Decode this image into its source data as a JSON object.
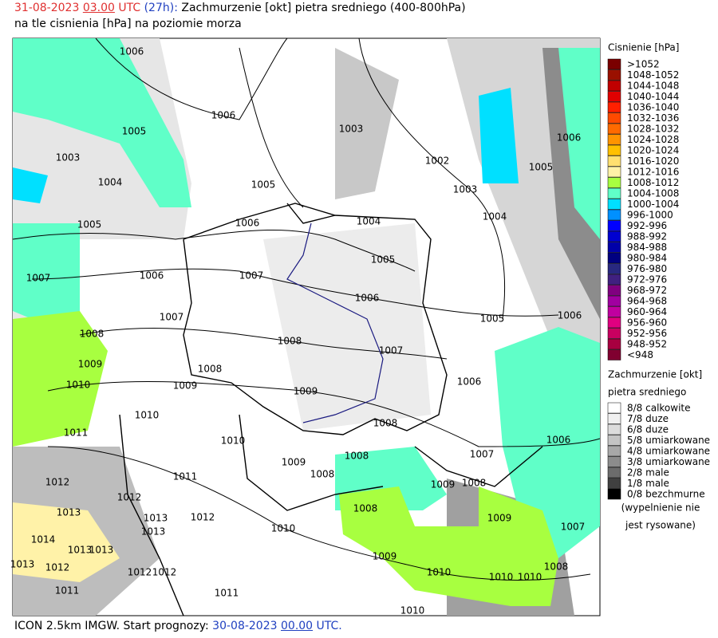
{
  "header": {
    "title_parts": [
      {
        "text": "31-08-2023",
        "color": "#e03030",
        "underline": false
      },
      {
        "text": "03.00",
        "color": "#e03030",
        "underline": true
      },
      {
        "text": "UTC",
        "color": "#e03030",
        "underline": false
      },
      {
        "text": "(27h):",
        "color": "#2040c0",
        "underline": false
      },
      {
        "text": "Zachmurzenie [okt] pietra sredniego (400-800hPa)",
        "color": "#000000",
        "underline": false
      }
    ],
    "subtitle": "na tle cisnienia [hPa] na poziomie morza"
  },
  "footer": {
    "parts": [
      {
        "text": "ICON 2.5km IMGW. Start prognozy:",
        "color": "#000000",
        "underline": false
      },
      {
        "text": "30-08-2023",
        "color": "#2040c0",
        "underline": false
      },
      {
        "text": "00.00",
        "color": "#2040c0",
        "underline": true
      },
      {
        "text": "UTC.",
        "color": "#2040c0",
        "underline": false
      }
    ]
  },
  "pressure_legend": {
    "title": "Cisnienie [hPa]",
    "items": [
      {
        "label": ">1052",
        "color": "#7a0000"
      },
      {
        "label": "1048-1052",
        "color": "#9a1000"
      },
      {
        "label": "1044-1048",
        "color": "#c00000"
      },
      {
        "label": "1040-1044",
        "color": "#e00000"
      },
      {
        "label": "1036-1040",
        "color": "#ff2000"
      },
      {
        "label": "1032-1036",
        "color": "#ff4a00"
      },
      {
        "label": "1028-1032",
        "color": "#ff6a00"
      },
      {
        "label": "1024-1028",
        "color": "#ff9400"
      },
      {
        "label": "1020-1024",
        "color": "#ffc000"
      },
      {
        "label": "1016-1020",
        "color": "#ffe070"
      },
      {
        "label": "1012-1016",
        "color": "#fff2a8"
      },
      {
        "label": "1008-1012",
        "color": "#a8ff40"
      },
      {
        "label": "1004-1008",
        "color": "#60ffc8"
      },
      {
        "label": "1000-1004",
        "color": "#00e0ff"
      },
      {
        "label": "996-1000",
        "color": "#0090ff"
      },
      {
        "label": "992-996",
        "color": "#0000ff"
      },
      {
        "label": "988-992",
        "color": "#0000d0"
      },
      {
        "label": "984-988",
        "color": "#0000a8"
      },
      {
        "label": "980-984",
        "color": "#000080"
      },
      {
        "label": "976-980",
        "color": "#282880"
      },
      {
        "label": "972-976",
        "color": "#402080"
      },
      {
        "label": "968-972",
        "color": "#800080"
      },
      {
        "label": "964-968",
        "color": "#a000a0"
      },
      {
        "label": "960-964",
        "color": "#c000a0"
      },
      {
        "label": "956-960",
        "color": "#e00080"
      },
      {
        "label": "952-956",
        "color": "#c80060"
      },
      {
        "label": "948-952",
        "color": "#a80040"
      },
      {
        "label": "<948",
        "color": "#800030"
      }
    ]
  },
  "cloud_legend": {
    "title_lines": [
      "Zachmurzenie [okt]",
      "pietra sredniego"
    ],
    "items": [
      {
        "label": "8/8 calkowite",
        "color": "#ffffff"
      },
      {
        "label": "7/8 duze",
        "color": "#f0f0f0"
      },
      {
        "label": "6/8 duze",
        "color": "#dcdcdc"
      },
      {
        "label": "5/8 umiarkowane",
        "color": "#c4c4c4"
      },
      {
        "label": "4/8 umiarkowane",
        "color": "#a8a8a8"
      },
      {
        "label": "3/8 umiarkowane",
        "color": "#8c8c8c"
      },
      {
        "label": "2/8 male",
        "color": "#6c6c6c"
      },
      {
        "label": "1/8 male",
        "color": "#404040"
      },
      {
        "label": "0/8 bezchmurne",
        "color": "#000000"
      }
    ],
    "note_lines": [
      "(wypelnienie nie",
      "jest rysowane)"
    ]
  },
  "isobar_labels": [
    "1006",
    "1006",
    "1005",
    "1003",
    "1004",
    "1005",
    "1003",
    "1002",
    "1003",
    "1005",
    "1006",
    "1004",
    "1004",
    "1006",
    "1005",
    "1006",
    "1007",
    "1007",
    "1005",
    "1006",
    "1005",
    "1006",
    "1007",
    "1008",
    "1008",
    "1007",
    "1009",
    "1008",
    "1009",
    "1010",
    "1009",
    "1006",
    "1010",
    "1008",
    "1011",
    "1010",
    "1006",
    "1008",
    "1009",
    "1008",
    "1007",
    "1011",
    "1009",
    "1008",
    "1012",
    "1012",
    "1008",
    "1013",
    "1013",
    "1012",
    "1009",
    "1013",
    "1010",
    "1007",
    "1014",
    "1013",
    "1013",
    "1009",
    "1013",
    "1012",
    "1012",
    "1012",
    "1010",
    "1010",
    "1010",
    "1008",
    "1011",
    "1011",
    "1010"
  ]
}
